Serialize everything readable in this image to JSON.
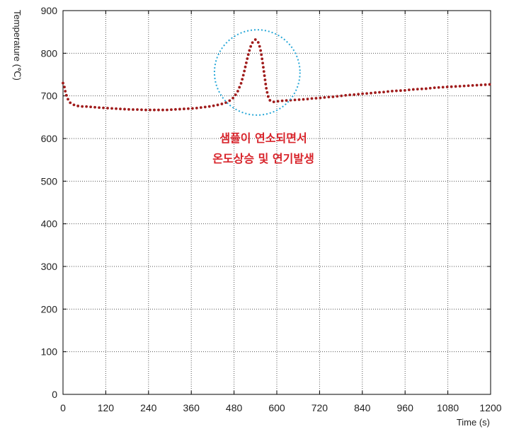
{
  "chart_data": {
    "type": "scatter",
    "title": "",
    "xlabel": "Time (s)",
    "ylabel": "Temperature (℃)",
    "xlim": [
      0,
      1200
    ],
    "ylim": [
      0,
      900
    ],
    "x_ticks": [
      0,
      120,
      240,
      360,
      480,
      600,
      720,
      840,
      960,
      1080,
      1200
    ],
    "y_ticks": [
      0,
      100,
      200,
      300,
      400,
      500,
      600,
      700,
      800,
      900
    ],
    "grid": true,
    "legend": "none",
    "series": [
      {
        "color": "#a01c1c",
        "x": [
          0,
          3,
          6,
          10,
          15,
          20,
          28,
          36,
          45,
          55,
          65,
          80,
          95,
          110,
          130,
          150,
          170,
          190,
          210,
          230,
          250,
          270,
          290,
          310,
          330,
          350,
          370,
          390,
          410,
          430,
          450,
          460,
          470,
          480,
          490,
          500,
          505,
          510,
          515,
          520,
          525,
          530,
          535,
          540,
          545,
          550,
          555,
          560,
          565,
          570,
          575,
          580,
          585,
          590,
          595,
          600,
          610,
          620,
          640,
          660,
          680,
          700,
          720,
          740,
          760,
          780,
          800,
          820,
          840,
          860,
          880,
          900,
          920,
          940,
          960,
          980,
          1000,
          1020,
          1040,
          1060,
          1080,
          1100,
          1120,
          1140,
          1160,
          1180,
          1200
        ],
        "y": [
          730,
          725,
          712,
          700,
          690,
          684,
          680,
          677,
          676,
          675,
          675,
          674,
          673,
          672,
          671,
          670,
          669,
          668,
          668,
          667,
          667,
          667,
          667,
          668,
          669,
          670,
          671,
          673,
          675,
          678,
          682,
          685,
          690,
          697,
          710,
          730,
          745,
          762,
          780,
          797,
          812,
          823,
          829,
          832,
          830,
          822,
          805,
          780,
          750,
          720,
          700,
          690,
          687,
          686,
          686,
          687,
          688,
          689,
          690,
          691,
          692,
          694,
          695,
          697,
          698,
          700,
          702,
          703,
          705,
          706,
          708,
          709,
          711,
          712,
          713,
          715,
          716,
          717,
          719,
          720,
          721,
          722,
          723,
          724,
          725,
          726,
          727
        ]
      }
    ],
    "annotations": {
      "line1": "샘플이 연소되면서",
      "line2": "온도상승 및 연기발생",
      "text_color": "#d8232a",
      "circle_color": "#29a8d8",
      "circle_center": [
        545,
        755
      ],
      "circle_radius": [
        120,
        100
      ]
    }
  }
}
